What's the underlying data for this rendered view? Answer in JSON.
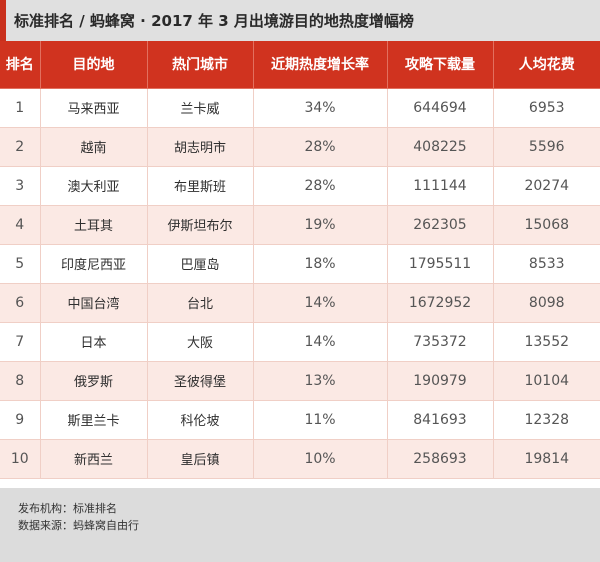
{
  "title": "标准排名 / 蚂蜂窝 · 2017 年 3 月出境游目的地热度增幅榜",
  "chart_data": {
    "type": "table",
    "columns": [
      "排名",
      "目的地",
      "热门城市",
      "近期热度增长率",
      "攻略下载量",
      "人均花费"
    ],
    "rows": [
      [
        "1",
        "马来西亚",
        "兰卡威",
        "34%",
        "644694",
        "6953"
      ],
      [
        "2",
        "越南",
        "胡志明市",
        "28%",
        "408225",
        "5596"
      ],
      [
        "3",
        "澳大利亚",
        "布里斯班",
        "28%",
        "111144",
        "20274"
      ],
      [
        "4",
        "土耳其",
        "伊斯坦布尔",
        "19%",
        "262305",
        "15068"
      ],
      [
        "5",
        "印度尼西亚",
        "巴厘岛",
        "18%",
        "1795511",
        "8533"
      ],
      [
        "6",
        "中国台湾",
        "台北",
        "14%",
        "1672952",
        "8098"
      ],
      [
        "7",
        "日本",
        "大阪",
        "14%",
        "735372",
        "13552"
      ],
      [
        "8",
        "俄罗斯",
        "圣彼得堡",
        "13%",
        "190979",
        "10104"
      ],
      [
        "9",
        "斯里兰卡",
        "科伦坡",
        "11%",
        "841693",
        "12328"
      ],
      [
        "10",
        "新西兰",
        "皇后镇",
        "10%",
        "258693",
        "19814"
      ]
    ]
  },
  "footer": {
    "publisher": "发布机构：标准排名",
    "source": "数据来源：蚂蜂窝自由行"
  },
  "colors": {
    "header_bg": "#d0331f",
    "row_alt_bg": "#fbe9e4",
    "title_bg": "#e0e0e0",
    "footer_bg": "#dcdcdc"
  }
}
